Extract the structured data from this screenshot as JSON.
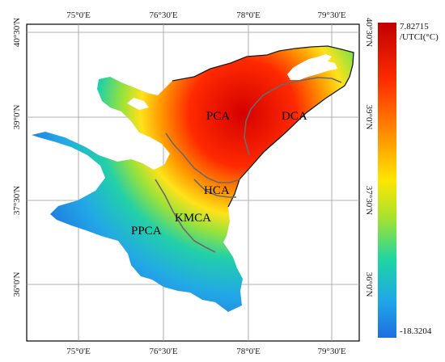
{
  "map": {
    "x_axis_labels": [
      "75°0'E",
      "76°30'E",
      "78°0'E",
      "79°30'E"
    ],
    "y_axis_labels": [
      "40°30'N",
      "39°0'N",
      "37°30'N",
      "36°0'N"
    ],
    "regions": [
      {
        "id": "pca",
        "label": "PCA"
      },
      {
        "id": "dca",
        "label": "DCA"
      },
      {
        "id": "hca",
        "label": "HCA"
      },
      {
        "id": "kmca",
        "label": "KMCA"
      },
      {
        "id": "ppca",
        "label": "PPCA"
      }
    ]
  },
  "legend": {
    "max_value": "7.82715",
    "unit": "/UTCI(°C)",
    "min_value": "-18.3204",
    "colors": [
      "#c00000",
      "#ff2a00",
      "#ff8c00",
      "#ffe600",
      "#a6e22e",
      "#1fd6a0",
      "#1fa8e8",
      "#1f6fe0"
    ]
  }
}
